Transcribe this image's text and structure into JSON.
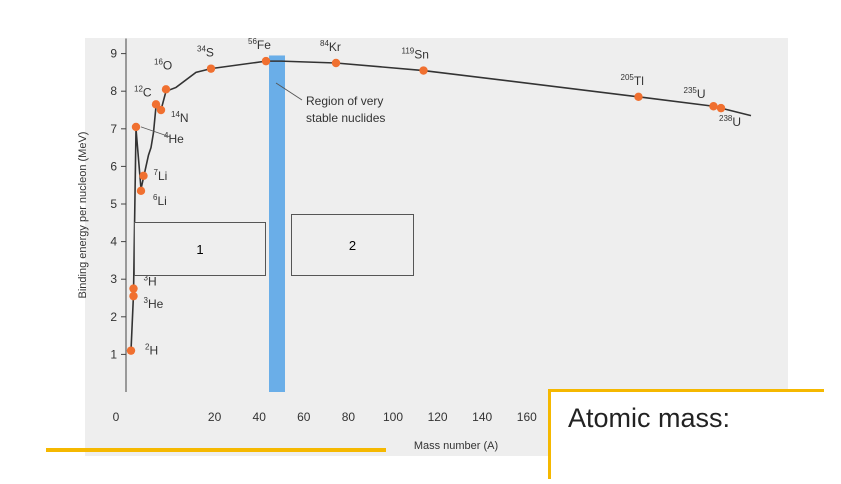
{
  "chart_data": {
    "type": "line",
    "xlabel": "Mass number (A)",
    "ylabel": "Binding energy per nucleon (MeV)",
    "xlim": [
      0,
      250
    ],
    "ylim": [
      0,
      9.5
    ],
    "x_ticks": [
      0,
      20,
      40,
      60,
      80,
      100,
      120,
      140,
      160
    ],
    "x_tick_labels": [
      "0",
      "20",
      "40",
      "60",
      "80",
      "100",
      "120",
      "140",
      "160"
    ],
    "y_ticks": [
      1,
      2,
      3,
      4,
      5,
      6,
      7,
      8,
      9
    ],
    "y_tick_labels": [
      "1",
      "2",
      "3",
      "4",
      "5",
      "6",
      "7",
      "8",
      "9"
    ],
    "curve": {
      "x": [
        2,
        3,
        4,
        6,
        7,
        9,
        10,
        11,
        12,
        14,
        16,
        20,
        28,
        34,
        56,
        62,
        84,
        119,
        205,
        235,
        238,
        250
      ],
      "y": [
        1.1,
        2.6,
        7.0,
        5.4,
        5.7,
        6.3,
        6.5,
        6.9,
        7.6,
        7.5,
        8.0,
        8.1,
        8.5,
        8.6,
        8.8,
        8.8,
        8.75,
        8.55,
        7.85,
        7.6,
        7.55,
        7.35
      ]
    },
    "points": [
      {
        "label": "H",
        "mass": "2",
        "x": 2,
        "y": 1.1
      },
      {
        "label": "He",
        "mass": "3",
        "x": 3,
        "y": 2.55
      },
      {
        "label": "H",
        "mass": "3",
        "x": 3,
        "y": 2.75
      },
      {
        "label": "He",
        "mass": "4",
        "x": 4,
        "y": 7.05
      },
      {
        "label": "Li",
        "mass": "6",
        "x": 6,
        "y": 5.35
      },
      {
        "label": "Li",
        "mass": "7",
        "x": 7,
        "y": 5.75
      },
      {
        "label": "C",
        "mass": "12",
        "x": 12,
        "y": 7.65
      },
      {
        "label": "N",
        "mass": "14",
        "x": 14,
        "y": 7.5
      },
      {
        "label": "O",
        "mass": "16",
        "x": 16,
        "y": 8.05
      },
      {
        "label": "S",
        "mass": "34",
        "x": 34,
        "y": 8.6
      },
      {
        "label": "Fe",
        "mass": "56",
        "x": 56,
        "y": 8.8
      },
      {
        "label": "Kr",
        "mass": "84",
        "x": 84,
        "y": 8.75
      },
      {
        "label": "Sn",
        "mass": "119",
        "x": 119,
        "y": 8.55
      },
      {
        "label": "Tl",
        "mass": "205",
        "x": 205,
        "y": 7.85
      },
      {
        "label": "U",
        "mass": "235",
        "x": 235,
        "y": 7.6
      },
      {
        "label": "U",
        "mass": "238",
        "x": 238,
        "y": 7.55
      }
    ],
    "stable_band": {
      "x_from": 56,
      "x_to": 62
    },
    "annotation": "Region of very stable nuclides",
    "annotation_lines": [
      "Region of very",
      "stable nuclides"
    ],
    "colors": {
      "curve": "#333333",
      "point": "#f07030",
      "band": "#6aaee8"
    }
  },
  "answer_boxes": [
    {
      "label": "1"
    },
    {
      "label": "2"
    }
  ],
  "atomic_mass_label": "Atomic mass:"
}
